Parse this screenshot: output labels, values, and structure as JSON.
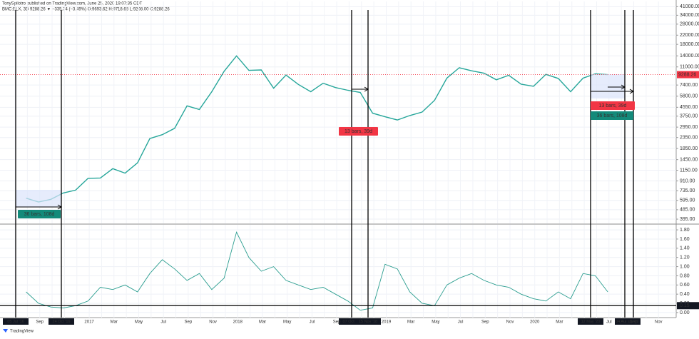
{
  "header": {
    "author": "TonySpilotro published on TradingView.com, June 25, 2020 19:07:35 CDT",
    "symbol": "BMC:BLX, 3D 9288.26 ▼ −335.74 (−3.49%) O:9693.62 H:9718.68 L:9208.00 C:9288.26",
    "brand": "TradingView"
  },
  "chart_data": [
    {
      "type": "line",
      "log_scale": true,
      "grid": true,
      "categories": [
        null,
        null,
        "Sep",
        null,
        null,
        null,
        "2017",
        null,
        "Mar",
        null,
        "May",
        null,
        "Jul",
        null,
        "Sep",
        null,
        "Nov",
        null,
        "2018",
        null,
        "Mar",
        null,
        "May",
        null,
        "Jul",
        null,
        "Sep",
        null,
        null,
        null,
        "2019",
        null,
        "Mar",
        null,
        "May",
        null,
        "Jul",
        null,
        "Sep",
        null,
        "Nov",
        null,
        "2020",
        null,
        "Mar",
        null,
        null,
        null,
        "Jul",
        null,
        "Sep",
        null,
        "Nov"
      ],
      "series": [
        {
          "name": "BMC:BLX",
          "color": "#26a69a",
          "values": [
            624,
            575,
            609,
            700,
            745,
            963,
            970,
            1190,
            1080,
            1350,
            2300,
            2500,
            2875,
            4700,
            4340,
            6400,
            10000,
            14000,
            10200,
            10300,
            6900,
            9200,
            7500,
            6400,
            7700,
            7000,
            6600,
            6300,
            4000,
            3700,
            3450,
            3800,
            4100,
            5300,
            8600,
            10800,
            10100,
            9600,
            8300,
            9150,
            7550,
            7200,
            9350,
            8550,
            6400,
            8600,
            9450,
            9288.26,
            null,
            null,
            null,
            null,
            null
          ]
        }
      ],
      "ylim": [
        360,
        46000
      ],
      "yticks": [
        {
          "value": 41000,
          "label": "41000.00"
        },
        {
          "value": 34000,
          "label": "34000.00"
        },
        {
          "value": 28000,
          "label": "28000.00"
        },
        {
          "value": 22000,
          "label": "22000.00"
        },
        {
          "value": 18000,
          "label": "18000.00"
        },
        {
          "value": 14000,
          "label": "14000.00"
        },
        {
          "value": 11000,
          "label": "11000.00"
        },
        {
          "value": 7400,
          "label": "7400.00"
        },
        {
          "value": 5800,
          "label": "5800.00"
        },
        {
          "value": 4550,
          "label": "4550.00"
        },
        {
          "value": 3750,
          "label": "3750.00"
        },
        {
          "value": 2950,
          "label": "2950.00"
        },
        {
          "value": 2350,
          "label": "2350.00"
        },
        {
          "value": 1850,
          "label": "1850.00"
        },
        {
          "value": 1450,
          "label": "1450.00"
        },
        {
          "value": 1150,
          "label": "1150.00"
        },
        {
          "value": 910,
          "label": "910.00"
        },
        {
          "value": 735,
          "label": "735.00"
        },
        {
          "value": 595,
          "label": "595.00"
        },
        {
          "value": 485,
          "label": "485.00"
        },
        {
          "value": 395,
          "label": "395.00"
        }
      ],
      "last_price": {
        "value": 9288.26,
        "label": "9288.26",
        "color": "#f23645"
      },
      "markers": [
        "05 Jul '16",
        "24 Oct '16",
        "07 Oct '18",
        "15 Nov '18",
        "12 May '20",
        "04 Aug '20",
        "ug '20"
      ],
      "annotations": [
        {
          "text": "36 bars, 108d",
          "color": "#138a7a"
        },
        {
          "text": "13 bars, 39d",
          "color": "#f23645"
        },
        {
          "text": "13 bars, 39d",
          "color": "#f23645"
        },
        {
          "text": "36 bars, 108d",
          "color": "#138a7a"
        }
      ]
    },
    {
      "type": "line",
      "grid": true,
      "categories": [
        null,
        null,
        "Sep",
        null,
        null,
        null,
        "2017",
        null,
        "Mar",
        null,
        "May",
        null,
        "Jul",
        null,
        "Sep",
        null,
        "Nov",
        null,
        "2018",
        null,
        "Mar",
        null,
        "May",
        null,
        "Jul",
        null,
        "Sep",
        null,
        null,
        null,
        "2019",
        null,
        "Mar",
        null,
        "May",
        null,
        "Jul",
        null,
        "Sep",
        null,
        "Nov",
        null,
        "2020",
        null,
        "Mar",
        null,
        null,
        null,
        "Jul",
        null,
        "Sep",
        null,
        "Nov"
      ],
      "series": [
        {
          "name": "Indicator",
          "color": "#2a9d8f",
          "values": [
            0.45,
            0.2,
            0.12,
            0.1,
            0.15,
            0.25,
            0.55,
            0.5,
            0.6,
            0.45,
            0.85,
            1.15,
            0.95,
            0.7,
            0.85,
            0.5,
            0.75,
            1.75,
            1.2,
            0.9,
            1.0,
            0.7,
            0.6,
            0.5,
            0.55,
            0.4,
            0.25,
            0.05,
            0.1,
            1.05,
            0.95,
            0.45,
            0.2,
            0.15,
            0.6,
            0.75,
            0.85,
            0.7,
            0.6,
            0.55,
            0.4,
            0.3,
            0.25,
            0.45,
            0.3,
            0.85,
            0.8,
            0.45,
            null,
            null,
            null,
            null,
            null
          ]
        }
      ],
      "ylim": [
        -0.11,
        1.91
      ],
      "yticks": [
        {
          "value": 1.8,
          "label": "1.80"
        },
        {
          "value": 1.6,
          "label": "1.60"
        },
        {
          "value": 1.4,
          "label": "1.40"
        },
        {
          "value": 1.2,
          "label": "1.20"
        },
        {
          "value": 1,
          "label": "1.00"
        },
        {
          "value": 0.8,
          "label": "0.80"
        },
        {
          "value": 0.6,
          "label": "0.60"
        },
        {
          "value": 0.4,
          "label": "0.40"
        },
        {
          "value": 0.2,
          "label": "0.20"
        },
        {
          "value": 0,
          "label": "0.00"
        }
      ],
      "hline": {
        "value": 0.15,
        "label": "0.15"
      }
    }
  ]
}
